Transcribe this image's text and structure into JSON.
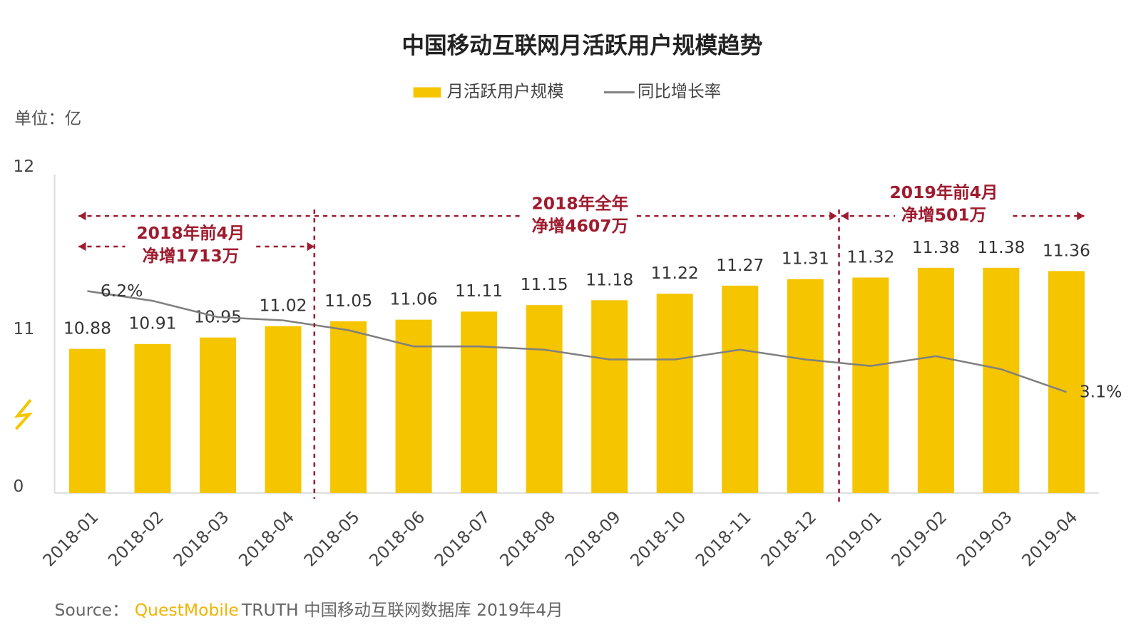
{
  "chart_data": {
    "type": "bar_line",
    "title": "中国移动互联网月活跃用户规模趋势",
    "unit_label": "单位：亿",
    "categories": [
      "2018-01",
      "2018-02",
      "2018-03",
      "2018-04",
      "2018-05",
      "2018-06",
      "2018-07",
      "2018-08",
      "2018-09",
      "2018-10",
      "2018-11",
      "2018-12",
      "2019-01",
      "2019-02",
      "2019-03",
      "2019-04"
    ],
    "series": [
      {
        "name": "月活跃用户规模",
        "type": "bar",
        "color": "#f5c500",
        "values": [
          10.88,
          10.91,
          10.95,
          11.02,
          11.05,
          11.06,
          11.11,
          11.15,
          11.18,
          11.22,
          11.27,
          11.31,
          11.32,
          11.38,
          11.38,
          11.36
        ]
      },
      {
        "name": "同比增长率",
        "type": "line",
        "color": "#808080",
        "axis": "y2",
        "values": [
          6.2,
          5.9,
          5.4,
          5.3,
          5.0,
          4.5,
          4.5,
          4.4,
          4.1,
          4.1,
          4.4,
          4.1,
          3.9,
          4.2,
          3.8,
          3.1
        ],
        "value_labels": [
          "6.2%",
          null,
          null,
          null,
          null,
          null,
          null,
          null,
          null,
          null,
          null,
          null,
          null,
          null,
          null,
          "3.1%"
        ]
      }
    ],
    "ylim": [
      0,
      12
    ],
    "yticks": [
      0,
      11,
      12
    ],
    "broken_axis": true,
    "y2lim": [
      0,
      10
    ],
    "annotations": [
      {
        "lines": [
          "2018年前4月",
          "净增1713万"
        ]
      },
      {
        "lines": [
          "2018年全年",
          "净增4607万"
        ]
      },
      {
        "lines": [
          "2019年前4月",
          "净增501万"
        ]
      }
    ],
    "source": {
      "label": "Source：",
      "brand": "QuestMobile",
      "text": "TRUTH 中国移动互联网数据库 2019年4月"
    }
  }
}
